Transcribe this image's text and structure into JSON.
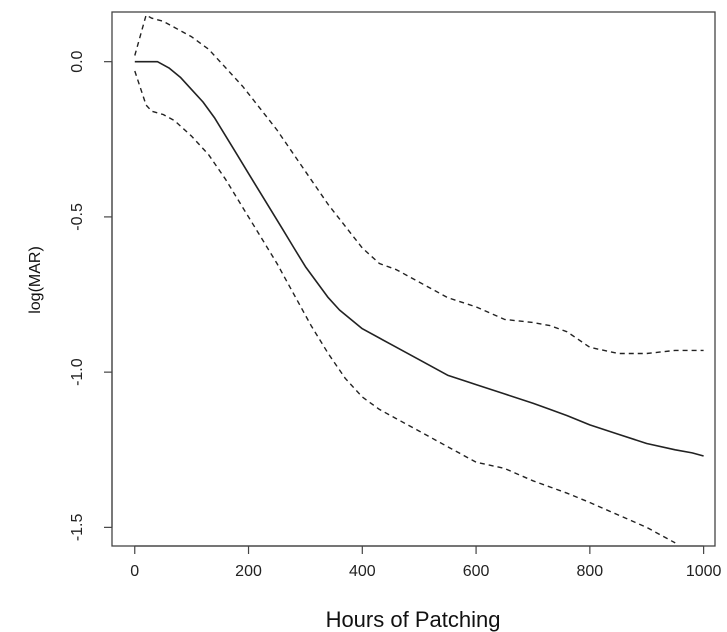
{
  "chart_data": {
    "type": "line",
    "xlabel": "Hours of Patching",
    "ylabel": "log(MAR)",
    "xlim": [
      -40,
      1020
    ],
    "ylim": [
      -1.56,
      0.16
    ],
    "xticks": [
      0,
      200,
      400,
      600,
      800,
      1000
    ],
    "xtick_labels": [
      "0",
      "200",
      "400",
      "600",
      "800",
      "1000"
    ],
    "yticks": [
      0.0,
      -0.5,
      -1.0,
      -1.5
    ],
    "ytick_labels": [
      "0.0",
      "-0.5",
      "-1.0",
      "-1.5"
    ],
    "grid": false,
    "legend": "none",
    "series": [
      {
        "style": "solid",
        "x": [
          0,
          20,
          40,
          60,
          80,
          100,
          120,
          140,
          160,
          180,
          200,
          220,
          240,
          260,
          280,
          300,
          320,
          340,
          360,
          380,
          400,
          450,
          500,
          550,
          600,
          650,
          700,
          730,
          760,
          800,
          850,
          900,
          950,
          980,
          1000
        ],
        "y": [
          0.0,
          0.0,
          0.0,
          -0.02,
          -0.05,
          -0.09,
          -0.13,
          -0.18,
          -0.24,
          -0.3,
          -0.36,
          -0.42,
          -0.48,
          -0.54,
          -0.6,
          -0.66,
          -0.71,
          -0.76,
          -0.8,
          -0.83,
          -0.86,
          -0.91,
          -0.96,
          -1.01,
          -1.04,
          -1.07,
          -1.1,
          -1.12,
          -1.14,
          -1.17,
          -1.2,
          -1.23,
          -1.25,
          -1.26,
          -1.27
        ]
      },
      {
        "style": "dashed",
        "x": [
          0,
          20,
          30,
          50,
          70,
          100,
          130,
          160,
          190,
          220,
          250,
          280,
          310,
          340,
          370,
          400,
          430,
          460,
          500,
          550,
          600,
          650,
          700,
          730,
          760,
          800,
          850,
          900,
          950,
          1000
        ],
        "y": [
          0.02,
          0.15,
          0.14,
          0.13,
          0.11,
          0.08,
          0.04,
          -0.02,
          -0.08,
          -0.15,
          -0.22,
          -0.3,
          -0.38,
          -0.46,
          -0.53,
          -0.6,
          -0.65,
          -0.67,
          -0.71,
          -0.76,
          -0.79,
          -0.83,
          -0.84,
          -0.85,
          -0.87,
          -0.92,
          -0.94,
          -0.94,
          -0.93,
          -0.93
        ]
      },
      {
        "style": "dashed",
        "x": [
          0,
          20,
          30,
          50,
          70,
          100,
          130,
          160,
          190,
          220,
          250,
          280,
          310,
          340,
          370,
          400,
          430,
          460,
          500,
          550,
          600,
          650,
          700,
          730,
          760,
          800,
          850,
          900,
          950
        ],
        "y": [
          -0.03,
          -0.14,
          -0.16,
          -0.17,
          -0.19,
          -0.24,
          -0.3,
          -0.38,
          -0.47,
          -0.56,
          -0.65,
          -0.75,
          -0.85,
          -0.94,
          -1.02,
          -1.08,
          -1.12,
          -1.15,
          -1.19,
          -1.24,
          -1.29,
          -1.31,
          -1.35,
          -1.37,
          -1.39,
          -1.42,
          -1.46,
          -1.5,
          -1.55
        ]
      }
    ]
  }
}
